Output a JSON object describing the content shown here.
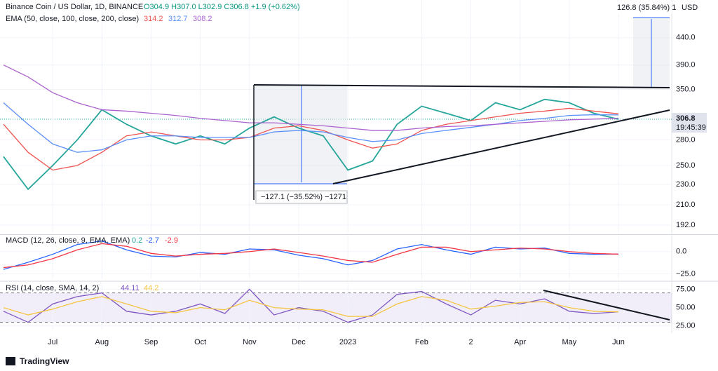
{
  "header": {
    "title": "Binance Coin / US Dollar, 1D, BINANCE",
    "ohlc": "O304.9 H307.0 L302.9 C306.8 +1.9 (+0.62%)",
    "ema_title": "EMA (50, close, 100, close, 200, close)",
    "currency": "USD",
    "countdown": "19:45:39"
  },
  "annotations": {
    "up": "126.8 (35.84%) 1",
    "down": "−127.1 (−35.52%) −1271"
  },
  "footer": "TradingView",
  "chart_data": [
    {
      "type": "line",
      "log_scale": true,
      "grid": true,
      "ylim": [
        185,
        520
      ],
      "yticks": [
        {
          "value": 440,
          "label": "440.0"
        },
        {
          "value": 390,
          "label": "390.0"
        },
        {
          "value": 350,
          "label": "350.0"
        },
        {
          "value": 280,
          "label": "280.0"
        },
        {
          "value": 250,
          "label": "250.0"
        },
        {
          "value": 230,
          "label": "230.0"
        },
        {
          "value": 210,
          "label": "210.0"
        },
        {
          "value": 192,
          "label": "192.0"
        }
      ],
      "series": [
        {
          "color": "#26a69a",
          "values": [
            260,
            225,
            250,
            280,
            320,
            300,
            285,
            275,
            285,
            275,
            295,
            310,
            295,
            285,
            245,
            255,
            300,
            325,
            315,
            305,
            330,
            320,
            335,
            330,
            315,
            306.8
          ]
        },
        {
          "color": "#ef5350",
          "values": [
            300,
            265,
            245,
            250,
            265,
            285,
            290,
            285,
            280,
            280,
            283,
            295,
            298,
            292,
            280,
            270,
            275,
            292,
            300,
            305,
            310,
            315,
            318,
            322,
            318,
            314.2
          ]
        },
        {
          "color": "#5b8ff9",
          "values": [
            330,
            300,
            275,
            265,
            268,
            280,
            285,
            285,
            283,
            283,
            283,
            290,
            292,
            290,
            283,
            278,
            280,
            288,
            292,
            296,
            300,
            305,
            308,
            312,
            313,
            312.7
          ]
        },
        {
          "color": "#ab62cf",
          "values": [
            390,
            370,
            345,
            330,
            320,
            318,
            315,
            312,
            308,
            305,
            302,
            302,
            300,
            298,
            295,
            292,
            292,
            295,
            297,
            298,
            300,
            302,
            304,
            306,
            307,
            308.2
          ]
        }
      ]
    },
    {
      "type": "line",
      "title": "MACD (12, 26, close, 9, EMA, EMA)",
      "histogram": 0.2,
      "grid": true,
      "ylim": [
        -31,
        18
      ],
      "yticks": [
        {
          "value": 0,
          "label": "0.0"
        },
        {
          "value": -25,
          "label": "−25.0"
        }
      ],
      "series": [
        {
          "color": "#2962ff",
          "values": [
            -20,
            -12,
            -3,
            8,
            12,
            2,
            -5,
            -6,
            -1,
            -3,
            3,
            2,
            -4,
            -8,
            -15,
            -10,
            3,
            8,
            2,
            -3,
            5,
            3,
            4,
            -2,
            -3,
            -2.7
          ]
        },
        {
          "color": "#f23645",
          "values": [
            -18,
            -15,
            -8,
            2,
            9,
            6,
            -2,
            -5,
            -3,
            -2,
            0,
            3,
            -1,
            -5,
            -10,
            -12,
            -3,
            5,
            5,
            0,
            2,
            4,
            3,
            0,
            -2,
            -2.9
          ]
        }
      ]
    },
    {
      "type": "line",
      "title": "RSI (14, close, SMA, 14, 2)",
      "grid": true,
      "ylim": [
        20,
        84
      ],
      "band": [
        30,
        70
      ],
      "yticks": [
        {
          "value": 75,
          "label": "75.00"
        },
        {
          "value": 50,
          "label": "50.00"
        },
        {
          "value": 25,
          "label": "25.00"
        }
      ],
      "categories": [
        null,
        null,
        "Jul",
        null,
        "Aug",
        null,
        "Sep",
        null,
        "Oct",
        null,
        "Nov",
        null,
        "Dec",
        null,
        "2023",
        null,
        null,
        "Feb",
        null,
        "2",
        null,
        "Apr",
        null,
        "May",
        null,
        "Jun"
      ],
      "series": [
        {
          "color": "#7e57c2",
          "values": [
            45,
            30,
            55,
            65,
            70,
            45,
            40,
            45,
            55,
            42,
            75,
            40,
            50,
            45,
            30,
            40,
            68,
            72,
            55,
            40,
            60,
            55,
            62,
            45,
            42,
            44.11
          ]
        },
        {
          "color": "#f5c542",
          "values": [
            50,
            40,
            48,
            58,
            65,
            55,
            45,
            43,
            50,
            47,
            60,
            50,
            48,
            47,
            38,
            38,
            55,
            65,
            60,
            48,
            52,
            57,
            58,
            50,
            45,
            44.2
          ]
        }
      ]
    }
  ]
}
